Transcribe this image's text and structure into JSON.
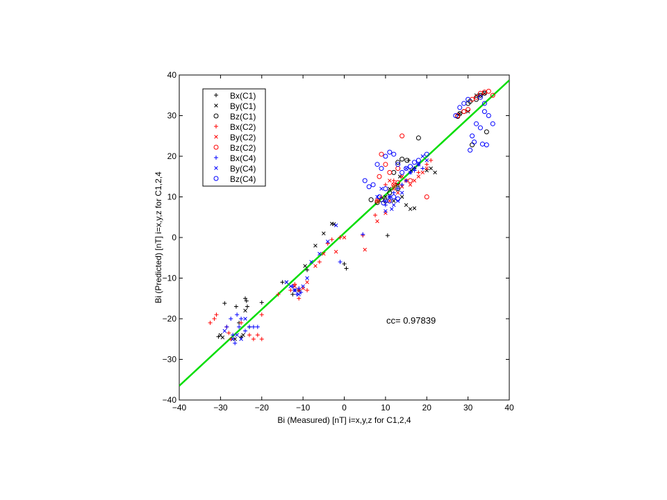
{
  "chart_data": {
    "type": "scatter",
    "xlabel": "Bi (Measured) [nT] i=x,y,z for C1,2,4",
    "ylabel": "Bi (Predicted) [nT] i=x,y,z for C1,2,4",
    "xlim": [
      -40,
      40
    ],
    "ylim": [
      -40,
      40
    ],
    "xticks": [
      "-40",
      "-30",
      "-20",
      "-10",
      "0",
      "10",
      "20",
      "30",
      "40"
    ],
    "yticks": [
      "-40",
      "-30",
      "-20",
      "-10",
      "0",
      "10",
      "20",
      "30",
      "40"
    ],
    "grid": false,
    "legend_position": "top-left",
    "annotation": "cc= 0.97839",
    "fit_line": {
      "color": "#00dd00",
      "points": [
        [
          -40,
          -36.5
        ],
        [
          40,
          38.7
        ]
      ]
    },
    "series": [
      {
        "name": "Bx(C1)",
        "marker": "plus",
        "color": "#000000",
        "points": [
          [
            -30.5,
            -24.4
          ],
          [
            -29,
            -16.2
          ],
          [
            -26.2,
            -17
          ],
          [
            -25.5,
            -21
          ],
          [
            -25,
            -24.5
          ],
          [
            -24,
            -15
          ],
          [
            -23.7,
            -15.6
          ],
          [
            -23.5,
            -17
          ],
          [
            -23,
            -22
          ],
          [
            -20,
            -16
          ],
          [
            -15,
            -11
          ],
          [
            -12.5,
            -14
          ],
          [
            -11,
            -13
          ],
          [
            -9,
            -8
          ],
          [
            0,
            -6.5
          ],
          [
            0.5,
            -7.6
          ],
          [
            10.5,
            0.5
          ],
          [
            15.6,
            19
          ],
          [
            17,
            17
          ],
          [
            8,
            9
          ]
        ]
      },
      {
        "name": "By(C1)",
        "marker": "x",
        "color": "#000000",
        "points": [
          [
            -30,
            -24
          ],
          [
            -29.5,
            -24.6
          ],
          [
            -26.5,
            -25
          ],
          [
            -24.5,
            -24
          ],
          [
            -24,
            -18
          ],
          [
            -14,
            -11
          ],
          [
            -12,
            -13
          ],
          [
            -9.5,
            -7
          ],
          [
            -7,
            -2
          ],
          [
            -5,
            1
          ],
          [
            -3,
            3.4
          ],
          [
            -2.5,
            3.3
          ],
          [
            10,
            10
          ],
          [
            14,
            10
          ],
          [
            15,
            8
          ],
          [
            16,
            7
          ],
          [
            17,
            7.2
          ],
          [
            18,
            18
          ],
          [
            20,
            16.5
          ],
          [
            21,
            17
          ],
          [
            22,
            16
          ],
          [
            11,
            12
          ],
          [
            12,
            9
          ],
          [
            13,
            13
          ],
          [
            28,
            30.5
          ],
          [
            30,
            31
          ],
          [
            32,
            35
          ],
          [
            33,
            35
          ],
          [
            34,
            35.5
          ],
          [
            13.5,
            15
          ],
          [
            16.2,
            16.5
          ]
        ]
      },
      {
        "name": "Bz(C1)",
        "marker": "circle",
        "color": "#000000",
        "points": [
          [
            6.5,
            9.3
          ],
          [
            8,
            8.6
          ],
          [
            9,
            9.3
          ],
          [
            10,
            9
          ],
          [
            12,
            16
          ],
          [
            13,
            18.5
          ],
          [
            14,
            19.3
          ],
          [
            15.2,
            19
          ],
          [
            18,
            24.5
          ],
          [
            27.5,
            29.8
          ],
          [
            28,
            30.5
          ],
          [
            29,
            31
          ],
          [
            30,
            33
          ],
          [
            30.5,
            33.5
          ],
          [
            31,
            22.8
          ],
          [
            32,
            34
          ],
          [
            33,
            35
          ],
          [
            34,
            35.5
          ],
          [
            34.5,
            26
          ],
          [
            13,
            12
          ],
          [
            11,
            11
          ]
        ]
      },
      {
        "name": "Bx(C2)",
        "marker": "plus",
        "color": "#ff0000",
        "points": [
          [
            -32.5,
            -21
          ],
          [
            -31.5,
            -20
          ],
          [
            -31,
            -19
          ],
          [
            -28.5,
            -22
          ],
          [
            -28,
            -23.5
          ],
          [
            -27.5,
            -25
          ],
          [
            -25,
            -21
          ],
          [
            -23,
            -24
          ],
          [
            -22,
            -25
          ],
          [
            -21,
            -24
          ],
          [
            -20,
            -25
          ],
          [
            -20,
            -19
          ],
          [
            -16,
            -14
          ],
          [
            -13,
            -13
          ],
          [
            -12,
            -11.5
          ],
          [
            -11,
            -15
          ],
          [
            -9,
            -13
          ],
          [
            -6,
            -6
          ],
          [
            -4,
            -1.5
          ],
          [
            -3,
            -0.5
          ],
          [
            -1,
            0
          ],
          [
            8,
            9
          ],
          [
            9,
            10
          ],
          [
            10,
            13
          ],
          [
            12,
            14
          ],
          [
            15,
            14
          ],
          [
            18,
            16
          ],
          [
            20,
            18
          ],
          [
            21,
            19
          ],
          [
            7.5,
            5.5
          ],
          [
            4.5,
            0.5
          ]
        ]
      },
      {
        "name": "By(C2)",
        "marker": "x",
        "color": "#ff0000",
        "points": [
          [
            -12,
            -12
          ],
          [
            -11,
            -13
          ],
          [
            -10,
            -12.5
          ],
          [
            -9,
            -11
          ],
          [
            -7,
            -7
          ],
          [
            -5,
            -4
          ],
          [
            -2,
            -3.5
          ],
          [
            0,
            0
          ],
          [
            5,
            -3
          ],
          [
            8,
            4
          ],
          [
            10,
            6
          ],
          [
            11,
            9
          ],
          [
            12,
            12
          ],
          [
            13,
            11
          ],
          [
            14,
            12.5
          ],
          [
            15,
            14
          ],
          [
            16,
            13
          ],
          [
            17,
            14
          ],
          [
            18,
            15
          ],
          [
            19,
            16
          ],
          [
            20,
            17
          ],
          [
            11,
            14
          ],
          [
            14,
            15
          ],
          [
            12,
            13
          ]
        ]
      },
      {
        "name": "Bz(C2)",
        "marker": "circle",
        "color": "#ff0000",
        "points": [
          [
            8,
            9
          ],
          [
            9,
            20.5
          ],
          [
            10,
            18
          ],
          [
            11,
            16
          ],
          [
            12,
            13
          ],
          [
            13,
            13.5
          ],
          [
            14,
            25
          ],
          [
            16,
            14
          ],
          [
            20,
            10
          ],
          [
            27.5,
            30
          ],
          [
            29,
            31
          ],
          [
            30,
            31.5
          ],
          [
            31,
            34
          ],
          [
            32,
            34.5
          ],
          [
            33,
            35.5
          ],
          [
            34,
            35.8
          ],
          [
            35,
            36
          ],
          [
            36,
            35
          ],
          [
            8.5,
            15
          ],
          [
            13,
            17
          ]
        ]
      },
      {
        "name": "Bx(C4)",
        "marker": "plus",
        "color": "#0000ff",
        "points": [
          [
            -28.5,
            -22
          ],
          [
            -27.5,
            -20
          ],
          [
            -27,
            -24
          ],
          [
            -26.5,
            -26
          ],
          [
            -26,
            -19
          ],
          [
            -25.5,
            -22
          ],
          [
            -25,
            -20
          ],
          [
            -24,
            -23
          ],
          [
            -23,
            -22
          ],
          [
            -22,
            -22
          ],
          [
            -21,
            -22
          ],
          [
            -12.5,
            -12
          ],
          [
            -12,
            -13
          ],
          [
            -11.5,
            -14
          ],
          [
            -11,
            -12.5
          ],
          [
            -10.5,
            -13.5
          ],
          [
            -1,
            -6
          ],
          [
            4.5,
            0.8
          ],
          [
            10,
            8
          ],
          [
            11,
            10
          ],
          [
            12,
            11
          ],
          [
            13,
            12
          ],
          [
            14,
            13
          ],
          [
            15,
            14
          ],
          [
            16,
            16
          ],
          [
            17,
            16.5
          ],
          [
            18,
            18
          ],
          [
            19,
            17
          ]
        ]
      },
      {
        "name": "By(C4)",
        "marker": "x",
        "color": "#0000ff",
        "points": [
          [
            -29,
            -23
          ],
          [
            -27,
            -25
          ],
          [
            -26,
            -24
          ],
          [
            -25,
            -25
          ],
          [
            -24,
            -20
          ],
          [
            -14,
            -11
          ],
          [
            -13,
            -12
          ],
          [
            -12,
            -13
          ],
          [
            -11,
            -14
          ],
          [
            -10,
            -12
          ],
          [
            -9,
            -10
          ],
          [
            -8,
            -6
          ],
          [
            -6,
            -4
          ],
          [
            -4,
            -1
          ],
          [
            -2,
            3
          ],
          [
            8,
            10
          ],
          [
            9,
            12
          ],
          [
            10,
            9
          ],
          [
            11,
            10
          ],
          [
            12,
            8
          ],
          [
            13,
            9
          ],
          [
            14,
            11
          ],
          [
            15,
            17
          ],
          [
            16,
            16
          ],
          [
            17,
            17
          ],
          [
            18,
            18
          ],
          [
            19,
            20
          ],
          [
            20,
            19
          ],
          [
            10,
            6.5
          ],
          [
            11.5,
            7
          ]
        ]
      },
      {
        "name": "Bz(C4)",
        "marker": "circle",
        "color": "#0000ff",
        "points": [
          [
            5,
            14
          ],
          [
            6,
            12.5
          ],
          [
            7,
            13
          ],
          [
            8,
            18
          ],
          [
            9,
            17
          ],
          [
            10,
            20
          ],
          [
            11,
            21
          ],
          [
            12,
            20.5
          ],
          [
            13,
            18
          ],
          [
            14,
            16
          ],
          [
            15,
            17
          ],
          [
            16,
            17.5
          ],
          [
            17,
            18.5
          ],
          [
            18,
            19
          ],
          [
            20,
            20.5
          ],
          [
            8.5,
            10
          ],
          [
            9.5,
            8.5
          ],
          [
            11,
            9
          ],
          [
            12,
            10
          ],
          [
            27,
            30
          ],
          [
            28,
            32
          ],
          [
            29,
            33
          ],
          [
            30,
            34
          ],
          [
            30.5,
            21.5
          ],
          [
            31,
            25
          ],
          [
            31.5,
            23.5
          ],
          [
            32,
            28
          ],
          [
            33,
            27
          ],
          [
            33.5,
            23
          ],
          [
            34,
            31
          ],
          [
            34.5,
            22.8
          ],
          [
            35,
            30
          ],
          [
            36,
            28
          ],
          [
            33,
            34.5
          ],
          [
            34,
            33
          ],
          [
            10,
            12
          ],
          [
            13,
            9.5
          ]
        ]
      }
    ]
  }
}
